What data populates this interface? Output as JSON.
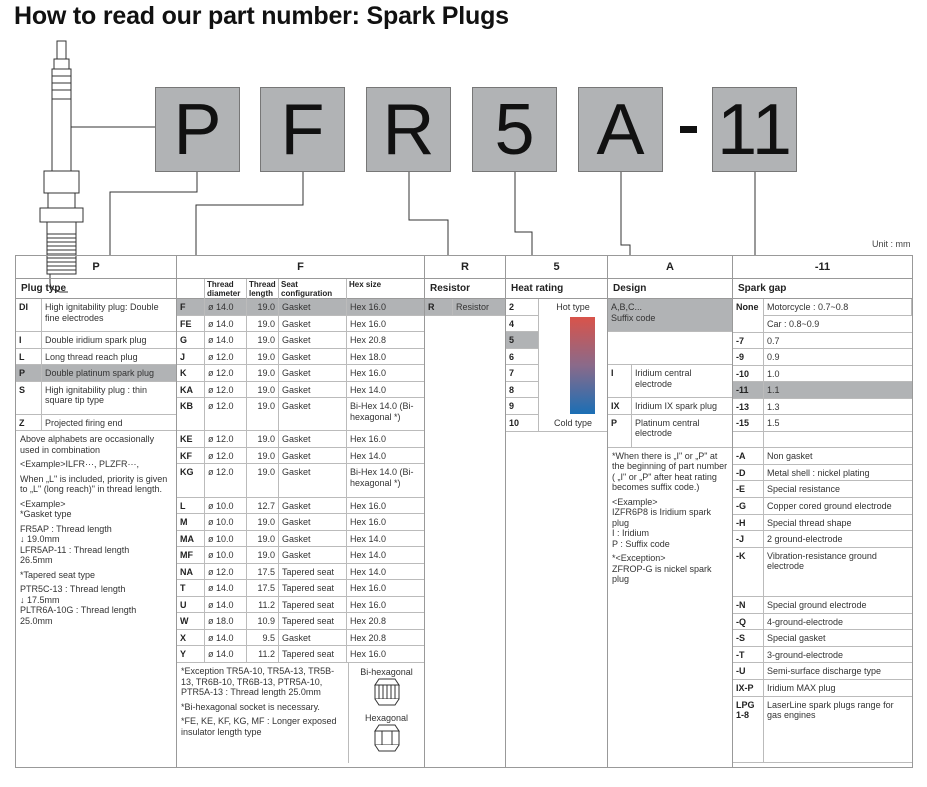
{
  "title": "How to read our part number: Spark Plugs",
  "part_boxes": [
    "P",
    "F",
    "R",
    "5",
    "A",
    "11"
  ],
  "dash": "-",
  "unit": "Unit : mm",
  "colors": {
    "highlight": "#b1b3b5",
    "hot": "#d9534a",
    "cold": "#1b6fb5"
  },
  "plug_type": {
    "header": "P",
    "subheader": "Plug type",
    "rows": [
      {
        "code": "DI",
        "desc": "High ignitability plug: Double fine electrodes",
        "h": 2
      },
      {
        "code": "I",
        "desc": "Double iridium spark plug"
      },
      {
        "code": "L",
        "desc": "Long thread reach plug"
      },
      {
        "code": "P",
        "desc": "Double platinum spark plug",
        "hl": true
      },
      {
        "code": "S",
        "desc": "High ignitability plug : thin square tip type",
        "h": 2
      },
      {
        "code": "Z",
        "desc": "Projected firing end"
      }
    ],
    "notes": [
      "Above alphabets are occasionally used in combination",
      "<Example>ILFR···, PLZFR···,",
      "When „L\" is included, priority is given to „L\" (long reach)\" in thread length.",
      "<Example>\n*Gasket type",
      "FR5AP : Thread length\n↓            19.0mm\nLFR5AP-11 : Thread length\n                  26.5mm",
      "*Tapered seat type",
      "PTR5C-13 : Thread length\n↓                17.5mm\nPLTR6A-10G : Thread length\n                     25.0mm"
    ]
  },
  "thread": {
    "header": "F",
    "columns": [
      "",
      "Thread diameter",
      "Thread length",
      "Seat configuration",
      "Hex size"
    ],
    "rows": [
      [
        "F",
        "ø 14.0",
        "19.0",
        "Gasket",
        "Hex 16.0",
        1,
        true
      ],
      [
        "FE",
        "ø 14.0",
        "19.0",
        "Gasket",
        "Hex 16.0"
      ],
      [
        "G",
        "ø 14.0",
        "19.0",
        "Gasket",
        "Hex 20.8"
      ],
      [
        "J",
        "ø 12.0",
        "19.0",
        "Gasket",
        "Hex 18.0"
      ],
      [
        "K",
        "ø 12.0",
        "19.0",
        "Gasket",
        "Hex 16.0"
      ],
      [
        "KA",
        "ø 12.0",
        "19.0",
        "Gasket",
        "Hex 14.0"
      ],
      [
        "KB",
        "ø 12.0",
        "19.0",
        "Gasket",
        "Bi-Hex 14.0 (Bi-hexagonal *)",
        2
      ],
      [
        "KE",
        "ø 12.0",
        "19.0",
        "Gasket",
        "Hex 16.0"
      ],
      [
        "KF",
        "ø 12.0",
        "19.0",
        "Gasket",
        "Hex 14.0"
      ],
      [
        "KG",
        "ø 12.0",
        "19.0",
        "Gasket",
        "Bi-Hex 14.0 (Bi-hexagonal *)",
        2
      ],
      [
        "L",
        "ø 10.0",
        "12.7",
        "Gasket",
        "Hex 16.0"
      ],
      [
        "M",
        "ø 10.0",
        "19.0",
        "Gasket",
        "Hex 16.0"
      ],
      [
        "MA",
        "ø 10.0",
        "19.0",
        "Gasket",
        "Hex 14.0"
      ],
      [
        "MF",
        "ø 10.0",
        "19.0",
        "Gasket",
        "Hex 14.0"
      ],
      [
        "NA",
        "ø 12.0",
        "17.5",
        "Tapered seat",
        "Hex 14.0"
      ],
      [
        "T",
        "ø 14.0",
        "17.5",
        "Tapered seat",
        "Hex 16.0"
      ],
      [
        "U",
        "ø 14.0",
        "11.2",
        "Tapered seat",
        "Hex 16.0"
      ],
      [
        "W",
        "ø 18.0",
        "10.9",
        "Tapered seat",
        "Hex 20.8"
      ],
      [
        "X",
        "ø 14.0",
        "9.5",
        "Gasket",
        "Hex 20.8"
      ],
      [
        "Y",
        "ø 14.0",
        "11.2",
        "Tapered seat",
        "Hex 16.0"
      ]
    ],
    "notes": [
      "*Exception TR5A-10, TR5A-13, TR5B-13, TR6B-10, TR6B-13, PTR5A-10, PTR5A-13 : Thread length 25.0mm",
      "*Bi-hexagonal socket is necessary.",
      "*FE, KE, KF, KG, MF : Longer exposed insulator length type"
    ],
    "bi_hex_label": "Bi-hexagonal",
    "hex_label": "Hexagonal"
  },
  "resistor": {
    "header": "R",
    "subheader": "Resistor",
    "rows": [
      {
        "code": "R",
        "desc": "Resistor",
        "hl": true
      }
    ]
  },
  "heat": {
    "header": "5",
    "subheader": "Heat rating",
    "values": [
      "2",
      "4",
      "5",
      "6",
      "7",
      "8",
      "9",
      "10"
    ],
    "selected": "5",
    "hot_label": "Hot type",
    "cold_label": "Cold type"
  },
  "design": {
    "header": "A",
    "subheader": "Design",
    "rows": [
      {
        "code": "",
        "desc": "A,B,C...\nSuffix code",
        "h": 2,
        "hl": true,
        "span": true
      },
      {
        "code": "",
        "desc": "",
        "h": 2,
        "span": true
      },
      {
        "code": "I",
        "desc": "Iridium central electrode",
        "h": 2
      },
      {
        "code": "IX",
        "desc": "Iridium IX spark plug"
      },
      {
        "code": "P",
        "desc": "Platinum central electrode",
        "h": 2
      }
    ],
    "notes": [
      "*When there is „I\" or „P\" at the beginning of part number ( „I\" or „P\" after heat rating becomes suffix code.)",
      "<Example>\nIZFR6P8 is Iridium spark plug\nI : Iridium\nP : Suffix code",
      "*<Exception>\nZFROP-G is nickel spark plug"
    ]
  },
  "gap": {
    "header": "-11",
    "subheader": "Spark gap",
    "none": {
      "code": "None",
      "values": [
        "Motorcycle : 0.7~0.8",
        "Car : 0.8~0.9"
      ]
    },
    "rows": [
      {
        "code": "-7",
        "desc": "0.7"
      },
      {
        "code": "-9",
        "desc": "0.9"
      },
      {
        "code": "-10",
        "desc": "1.0"
      },
      {
        "code": "-11",
        "desc": "1.1",
        "hl": true
      },
      {
        "code": "-13",
        "desc": "1.3"
      },
      {
        "code": "-15",
        "desc": "1.5"
      },
      {
        "code": "",
        "desc": ""
      },
      {
        "code": "-A",
        "desc": "Non gasket"
      },
      {
        "code": "-D",
        "desc": "Metal shell : nickel plating"
      },
      {
        "code": "-E",
        "desc": "Special resistance"
      },
      {
        "code": "-G",
        "desc": "Copper cored ground electrode"
      },
      {
        "code": "-H",
        "desc": "Special thread shape"
      },
      {
        "code": "-J",
        "desc": "2 ground-electrode"
      },
      {
        "code": "-K",
        "desc": "Vibration-resistance ground electrode",
        "h": 3
      },
      {
        "code": "-N",
        "desc": "Special ground electrode"
      },
      {
        "code": "-Q",
        "desc": "4-ground-electrode"
      },
      {
        "code": "-S",
        "desc": "Special gasket"
      },
      {
        "code": "-T",
        "desc": "3-ground-electrode"
      },
      {
        "code": "-U",
        "desc": "Semi-surface discharge type"
      },
      {
        "code": "IX-P",
        "desc": "Iridium MAX plug"
      },
      {
        "code": "LPG\n1-8",
        "desc": "LaserLine spark plugs range for gas engines",
        "h": 4
      }
    ]
  }
}
